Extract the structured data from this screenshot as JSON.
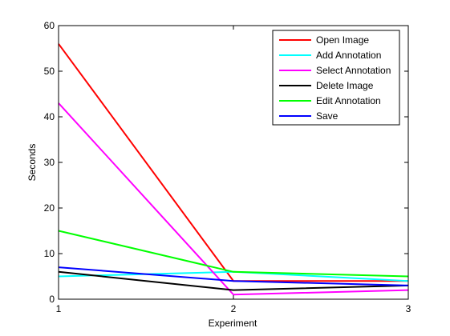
{
  "chart_data": {
    "type": "line",
    "title": "",
    "xlabel": "Experiment",
    "ylabel": "Seconds",
    "x": [
      1,
      2,
      3
    ],
    "xlim": [
      1,
      3
    ],
    "ylim": [
      0,
      60
    ],
    "xticks": [
      "1",
      "2",
      "3"
    ],
    "yticks": [
      "0",
      "10",
      "20",
      "30",
      "40",
      "50",
      "60"
    ],
    "grid": false,
    "legend_position": "top-right",
    "series": [
      {
        "name": "Open Image",
        "color": "#ff0000",
        "values": [
          56,
          4,
          4
        ]
      },
      {
        "name": "Add Annotation",
        "color": "#00ffff",
        "values": [
          5,
          6,
          4
        ]
      },
      {
        "name": "Select Annotation",
        "color": "#ff00ff",
        "values": [
          43,
          1,
          2
        ]
      },
      {
        "name": "Delete Image",
        "color": "#000000",
        "values": [
          6,
          2,
          3
        ]
      },
      {
        "name": "Edit Annotation",
        "color": "#00ff00",
        "values": [
          15,
          6,
          5
        ]
      },
      {
        "name": "Save",
        "color": "#0000ff",
        "values": [
          7,
          4,
          3
        ]
      }
    ]
  }
}
